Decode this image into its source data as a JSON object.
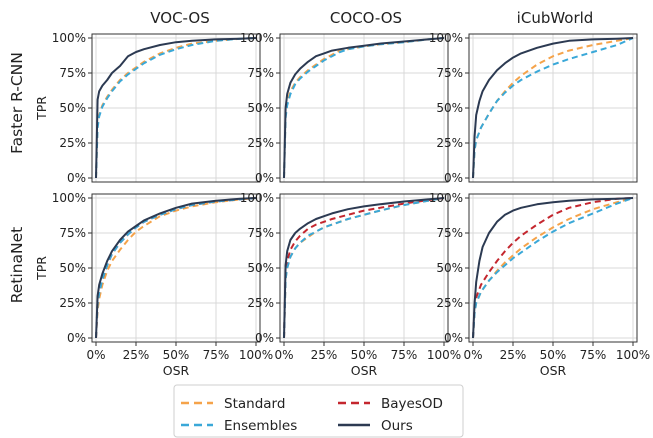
{
  "figure": {
    "columns": [
      "VOC-OS",
      "COCO-OS",
      "iCubWorld"
    ],
    "rows": [
      "Faster R-CNN",
      "RetinaNet"
    ],
    "xlabel": "OSR",
    "ylabel": "TPR",
    "x_ticks": [
      "0%",
      "25%",
      "50%",
      "75%",
      "100%"
    ],
    "y_ticks": [
      "0%",
      "25%",
      "50%",
      "75%",
      "100%"
    ]
  },
  "legend": {
    "placement": "bottom-center",
    "entries": [
      {
        "name": "Standard",
        "color": "#f5a34a",
        "dash": true
      },
      {
        "name": "BayesOD",
        "color": "#c4262e",
        "dash": true
      },
      {
        "name": "Ensembles",
        "color": "#3aa8d8",
        "dash": true
      },
      {
        "name": "Ours",
        "color": "#2c3a52",
        "dash": false
      }
    ]
  },
  "chart_data": [
    {
      "type": "line",
      "row": "Faster R-CNN",
      "col": "VOC-OS",
      "xlim": [
        0,
        100
      ],
      "ylim": [
        0,
        100
      ],
      "grid": true,
      "series": [
        {
          "name": "Standard",
          "x": [
            0,
            1,
            2,
            4,
            7,
            10,
            15,
            20,
            25,
            30,
            40,
            50,
            60,
            75,
            90,
            100
          ],
          "y": [
            0,
            38,
            45,
            52,
            58,
            63,
            70,
            75,
            79,
            83,
            89,
            93,
            96,
            98,
            99.5,
            100
          ]
        },
        {
          "name": "Ensembles",
          "x": [
            0,
            1,
            2,
            4,
            7,
            10,
            15,
            20,
            25,
            30,
            40,
            50,
            60,
            75,
            90,
            100
          ],
          "y": [
            0,
            36,
            44,
            51,
            57,
            62,
            69,
            74,
            78,
            82,
            88,
            92,
            95,
            98,
            99.5,
            100
          ]
        },
        {
          "name": "Ours",
          "x": [
            0,
            1,
            2,
            4,
            7,
            10,
            13,
            15,
            20,
            25,
            30,
            40,
            50,
            60,
            75,
            90,
            100
          ],
          "y": [
            0,
            56,
            62,
            66,
            70,
            75,
            78,
            80,
            87,
            90,
            92,
            95,
            97,
            98,
            99,
            99.5,
            100
          ]
        }
      ]
    },
    {
      "type": "line",
      "row": "Faster R-CNN",
      "col": "COCO-OS",
      "xlim": [
        0,
        100
      ],
      "ylim": [
        0,
        100
      ],
      "grid": true,
      "series": [
        {
          "name": "Standard",
          "x": [
            0,
            1,
            2,
            4,
            7,
            10,
            15,
            20,
            25,
            30,
            35,
            40,
            50,
            60,
            75,
            90,
            100
          ],
          "y": [
            0,
            45,
            54,
            62,
            68,
            72,
            77,
            81,
            85,
            88,
            91,
            92,
            94,
            95.5,
            97,
            99,
            100
          ]
        },
        {
          "name": "Ensembles",
          "x": [
            0,
            1,
            2,
            4,
            7,
            10,
            15,
            20,
            25,
            30,
            35,
            40,
            50,
            60,
            75,
            90,
            100
          ],
          "y": [
            0,
            43,
            52,
            60,
            67,
            71,
            76,
            80,
            84,
            87,
            90,
            92,
            94,
            95.5,
            97,
            99,
            100
          ]
        },
        {
          "name": "Ours",
          "x": [
            0,
            1,
            2,
            4,
            7,
            10,
            15,
            20,
            25,
            30,
            35,
            40,
            50,
            60,
            75,
            90,
            100
          ],
          "y": [
            0,
            50,
            60,
            68,
            74,
            78,
            83,
            87,
            89,
            91,
            92,
            93,
            94.5,
            96,
            97.5,
            99,
            100
          ]
        }
      ]
    },
    {
      "type": "line",
      "row": "Faster R-CNN",
      "col": "iCubWorld",
      "xlim": [
        0,
        100
      ],
      "ylim": [
        0,
        100
      ],
      "grid": true,
      "series": [
        {
          "name": "Standard",
          "x": [
            0,
            1,
            2,
            5,
            10,
            15,
            20,
            25,
            30,
            40,
            50,
            60,
            75,
            90,
            100
          ],
          "y": [
            0,
            20,
            27,
            36,
            46,
            55,
            62,
            68,
            73,
            81,
            87,
            91,
            95,
            98,
            100
          ]
        },
        {
          "name": "Ensembles",
          "x": [
            0,
            1,
            2,
            5,
            10,
            15,
            20,
            25,
            30,
            40,
            50,
            60,
            75,
            90,
            100
          ],
          "y": [
            0,
            20,
            27,
            36,
            46,
            55,
            61,
            66,
            70,
            76,
            81,
            85,
            90,
            95,
            100
          ]
        },
        {
          "name": "Ours",
          "x": [
            0,
            1,
            2,
            4,
            6,
            10,
            15,
            20,
            25,
            30,
            40,
            50,
            60,
            75,
            90,
            100
          ],
          "y": [
            0,
            30,
            45,
            55,
            62,
            70,
            77,
            82,
            86,
            89,
            93,
            96,
            98,
            99,
            99.5,
            100
          ]
        }
      ]
    },
    {
      "type": "line",
      "row": "RetinaNet",
      "col": "VOC-OS",
      "xlim": [
        0,
        100
      ],
      "ylim": [
        0,
        100
      ],
      "grid": true,
      "series": [
        {
          "name": "Standard",
          "x": [
            0,
            1,
            2,
            4,
            7,
            10,
            15,
            20,
            25,
            30,
            40,
            50,
            60,
            75,
            90,
            100
          ],
          "y": [
            0,
            20,
            28,
            38,
            48,
            55,
            63,
            70,
            76,
            80,
            87,
            91,
            94,
            97,
            99,
            100
          ]
        },
        {
          "name": "BayesOD",
          "x": [
            0,
            1,
            2,
            4,
            7,
            10,
            15,
            20,
            25,
            30,
            40,
            50,
            60,
            75,
            90,
            100
          ],
          "y": [
            0,
            25,
            33,
            42,
            52,
            60,
            68,
            74,
            79,
            83,
            88,
            92,
            95,
            97.5,
            99,
            100
          ]
        },
        {
          "name": "Ensembles",
          "x": [
            0,
            1,
            2,
            4,
            7,
            10,
            15,
            20,
            25,
            30,
            40,
            50,
            60,
            75,
            90,
            100
          ],
          "y": [
            0,
            24,
            32,
            42,
            52,
            60,
            68,
            74,
            79,
            83,
            88,
            92,
            95,
            97.5,
            99,
            100
          ]
        },
        {
          "name": "Ours",
          "x": [
            0,
            1,
            2,
            4,
            7,
            10,
            15,
            20,
            25,
            30,
            40,
            50,
            60,
            75,
            90,
            100
          ],
          "y": [
            0,
            30,
            38,
            46,
            55,
            62,
            70,
            76,
            80,
            84,
            89,
            93,
            96,
            98,
            99.5,
            100
          ]
        }
      ]
    },
    {
      "type": "line",
      "row": "RetinaNet",
      "col": "COCO-OS",
      "xlim": [
        0,
        100
      ],
      "ylim": [
        0,
        100
      ],
      "grid": true,
      "series": [
        {
          "name": "Standard",
          "x": [
            0,
            1,
            2,
            4,
            7,
            10,
            15,
            20,
            25,
            30,
            40,
            50,
            60,
            75,
            90,
            100
          ],
          "y": [
            0,
            42,
            50,
            58,
            64,
            68,
            72,
            76,
            79,
            81,
            85,
            88,
            91,
            95,
            98,
            100
          ]
        },
        {
          "name": "BayesOD",
          "x": [
            0,
            1,
            2,
            4,
            7,
            10,
            15,
            20,
            25,
            30,
            40,
            50,
            60,
            75,
            90,
            100
          ],
          "y": [
            0,
            47,
            55,
            63,
            69,
            73,
            78,
            81,
            83,
            85,
            88,
            91,
            93,
            96,
            98.5,
            100
          ]
        },
        {
          "name": "Ensembles",
          "x": [
            0,
            1,
            2,
            4,
            7,
            10,
            15,
            20,
            25,
            30,
            40,
            50,
            60,
            75,
            90,
            100
          ],
          "y": [
            0,
            42,
            50,
            58,
            64,
            68,
            73,
            76,
            79,
            81,
            85,
            88,
            91,
            95,
            98,
            100
          ]
        },
        {
          "name": "Ours",
          "x": [
            0,
            1,
            2,
            4,
            7,
            10,
            15,
            20,
            25,
            30,
            40,
            50,
            60,
            75,
            90,
            100
          ],
          "y": [
            0,
            52,
            62,
            70,
            75,
            78,
            82,
            85,
            87,
            89,
            92,
            94,
            95.5,
            97.5,
            99,
            100
          ]
        }
      ]
    },
    {
      "type": "line",
      "row": "RetinaNet",
      "col": "iCubWorld",
      "xlim": [
        0,
        100
      ],
      "ylim": [
        0,
        100
      ],
      "grid": true,
      "series": [
        {
          "name": "Standard",
          "x": [
            0,
            1,
            2,
            5,
            10,
            15,
            20,
            25,
            30,
            40,
            50,
            60,
            75,
            90,
            100
          ],
          "y": [
            0,
            18,
            25,
            33,
            41,
            48,
            54,
            59,
            64,
            72,
            79,
            85,
            92,
            97,
            100
          ]
        },
        {
          "name": "BayesOD",
          "x": [
            0,
            1,
            2,
            5,
            10,
            15,
            20,
            25,
            30,
            40,
            50,
            60,
            75,
            90,
            100
          ],
          "y": [
            0,
            22,
            29,
            38,
            47,
            55,
            62,
            68,
            73,
            81,
            88,
            93,
            97,
            99.5,
            100
          ]
        },
        {
          "name": "Ensembles",
          "x": [
            0,
            1,
            2,
            5,
            10,
            15,
            20,
            25,
            30,
            40,
            50,
            60,
            75,
            90,
            100
          ],
          "y": [
            0,
            18,
            25,
            33,
            41,
            47,
            52,
            57,
            61,
            69,
            76,
            82,
            89,
            96,
            100
          ]
        },
        {
          "name": "Ours",
          "x": [
            0,
            1,
            2,
            4,
            6,
            10,
            15,
            20,
            25,
            30,
            40,
            50,
            60,
            75,
            90,
            100
          ],
          "y": [
            0,
            25,
            40,
            55,
            65,
            75,
            83,
            88,
            91,
            93,
            95.5,
            97,
            98,
            99,
            99.5,
            100
          ]
        }
      ]
    }
  ]
}
